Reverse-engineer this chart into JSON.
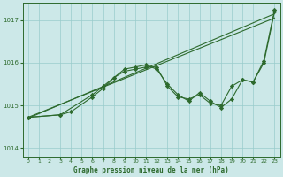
{
  "title": "Graphe pression niveau de la mer (hPa)",
  "bg_color": "#cce8e8",
  "grid_color": "#99cccc",
  "line_color": "#2d6a2d",
  "xlim": [
    -0.5,
    23.5
  ],
  "ylim": [
    1013.8,
    1017.4
  ],
  "xticks": [
    0,
    1,
    2,
    3,
    4,
    5,
    6,
    7,
    8,
    9,
    10,
    11,
    12,
    13,
    14,
    15,
    16,
    17,
    18,
    19,
    20,
    21,
    22,
    23
  ],
  "yticks": [
    1014,
    1015,
    1016,
    1017
  ],
  "series": [
    {
      "x": [
        0,
        23
      ],
      "y": [
        1014.7,
        1017.15
      ],
      "marker": null,
      "lw": 0.8
    },
    {
      "x": [
        0,
        23
      ],
      "y": [
        1014.72,
        1017.05
      ],
      "marker": null,
      "lw": 0.8
    },
    {
      "x": [
        0,
        3,
        4,
        6,
        7,
        8,
        9,
        10,
        11,
        12,
        13,
        14,
        15,
        16,
        17,
        18,
        19,
        20,
        21,
        22,
        23
      ],
      "y": [
        1014.72,
        1014.78,
        1014.85,
        1015.2,
        1015.4,
        1015.65,
        1015.8,
        1015.85,
        1015.9,
        1015.9,
        1015.45,
        1015.2,
        1015.15,
        1015.25,
        1015.05,
        1015.0,
        1015.45,
        1015.6,
        1015.55,
        1016.0,
        1017.2
      ],
      "marker": "D",
      "lw": 0.8
    },
    {
      "x": [
        0,
        3,
        6,
        7,
        8,
        9,
        10,
        11,
        12,
        13,
        14,
        15,
        16,
        17,
        18,
        19,
        20,
        21,
        22,
        23
      ],
      "y": [
        1014.72,
        1014.78,
        1015.25,
        1015.45,
        1015.65,
        1015.85,
        1015.9,
        1015.95,
        1015.85,
        1015.5,
        1015.25,
        1015.1,
        1015.3,
        1015.1,
        1014.95,
        1015.15,
        1015.6,
        1015.55,
        1016.05,
        1017.25
      ],
      "marker": "D",
      "lw": 0.8
    }
  ]
}
